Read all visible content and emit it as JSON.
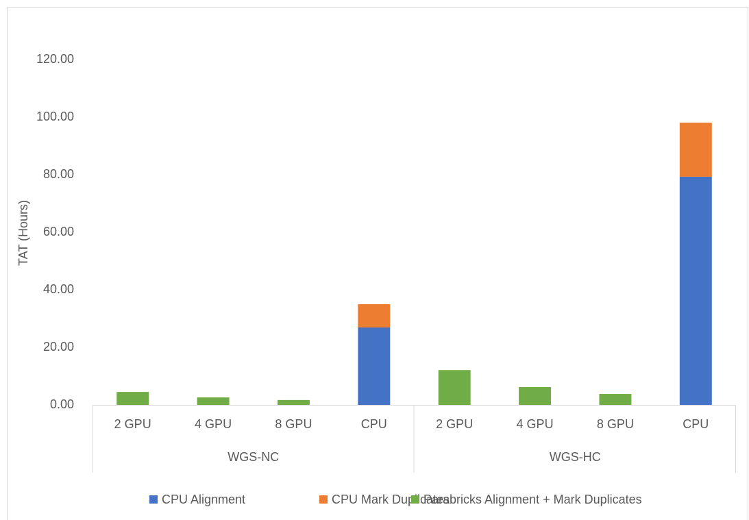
{
  "chart_data": {
    "type": "bar",
    "stacked": true,
    "y_label": "TAT  (Hours)",
    "categories": [
      "2 GPU",
      "4 GPU",
      "8 GPU",
      "CPU",
      "2 GPU",
      "4 GPU",
      "8 GPU",
      "CPU"
    ],
    "groups": [
      {
        "label": "WGS-NC",
        "size": 4
      },
      {
        "label": "WGS-HC",
        "size": 4
      }
    ],
    "series": [
      {
        "name": "CPU Alignment",
        "color": "#4472c4",
        "values": [
          null,
          null,
          null,
          26.9,
          null,
          null,
          null,
          79.3
        ]
      },
      {
        "name": "CPU Mark Duplicates",
        "color": "#ed7d31",
        "values": [
          null,
          null,
          null,
          8.1,
          null,
          null,
          null,
          18.8
        ]
      },
      {
        "name": "Parabricks Alignment + Mark Duplicates",
        "color": "#70ad47",
        "values": [
          4.5,
          2.6,
          1.7,
          null,
          12.1,
          6.2,
          3.8,
          null
        ]
      }
    ],
    "ylim": [
      0,
      120
    ],
    "yticks": [
      {
        "value": 0,
        "label": "0.00"
      },
      {
        "value": 20,
        "label": "20.00"
      },
      {
        "value": 40,
        "label": "40.00"
      },
      {
        "value": 60,
        "label": "60.00"
      },
      {
        "value": 80,
        "label": "80.00"
      },
      {
        "value": 100,
        "label": "100.00"
      },
      {
        "value": 120,
        "label": "120.00"
      }
    ],
    "grid": false,
    "legend": "bottom"
  }
}
